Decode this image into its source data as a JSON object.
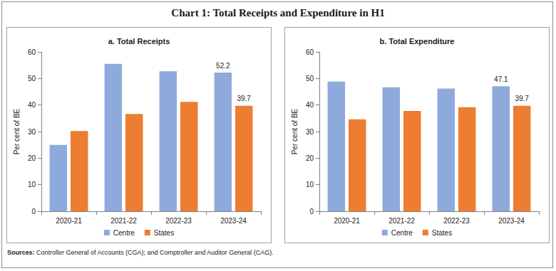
{
  "title": "Chart 1: Total Receipts and Expenditure in H1",
  "source_label": "Sources:",
  "source": "Controller General of Accounts (CGA); and Comptroller and Auditor General (CAG).",
  "chart_data": [
    {
      "type": "bar",
      "title": "a. Total Receipts",
      "ylabel": "Per cent of BE",
      "categories": [
        "2020-21",
        "2021-22",
        "2022-23",
        "2023-24"
      ],
      "series": [
        {
          "name": "Centre",
          "color": "#8eaadc",
          "values": [
            25.0,
            55.5,
            52.7,
            52.2
          ],
          "value_labels": [
            null,
            null,
            null,
            "52.2"
          ]
        },
        {
          "name": "States",
          "color": "#ed7d31",
          "values": [
            30.2,
            36.6,
            41.2,
            39.7
          ],
          "value_labels": [
            null,
            null,
            null,
            "39.7"
          ]
        }
      ],
      "ylim": [
        0,
        60
      ],
      "yticks": [
        0,
        10,
        20,
        30,
        40,
        50,
        60
      ],
      "grid": false,
      "legend": "bottom",
      "data_labels": true
    },
    {
      "type": "bar",
      "title": "b. Total Expenditure",
      "ylabel": "Per cent of BE",
      "categories": [
        "2020-21",
        "2021-22",
        "2022-23",
        "2023-24"
      ],
      "series": [
        {
          "name": "Centre",
          "color": "#8eaadc",
          "values": [
            48.8,
            46.7,
            46.2,
            47.1
          ],
          "value_labels": [
            null,
            null,
            null,
            "47.1"
          ]
        },
        {
          "name": "States",
          "color": "#ed7d31",
          "values": [
            34.6,
            37.8,
            39.2,
            39.7
          ],
          "value_labels": [
            null,
            null,
            null,
            "39.7"
          ]
        }
      ],
      "ylim": [
        0,
        60
      ],
      "yticks": [
        0,
        10,
        20,
        30,
        40,
        50,
        60
      ],
      "grid": false,
      "legend": "bottom",
      "data_labels": true
    }
  ]
}
